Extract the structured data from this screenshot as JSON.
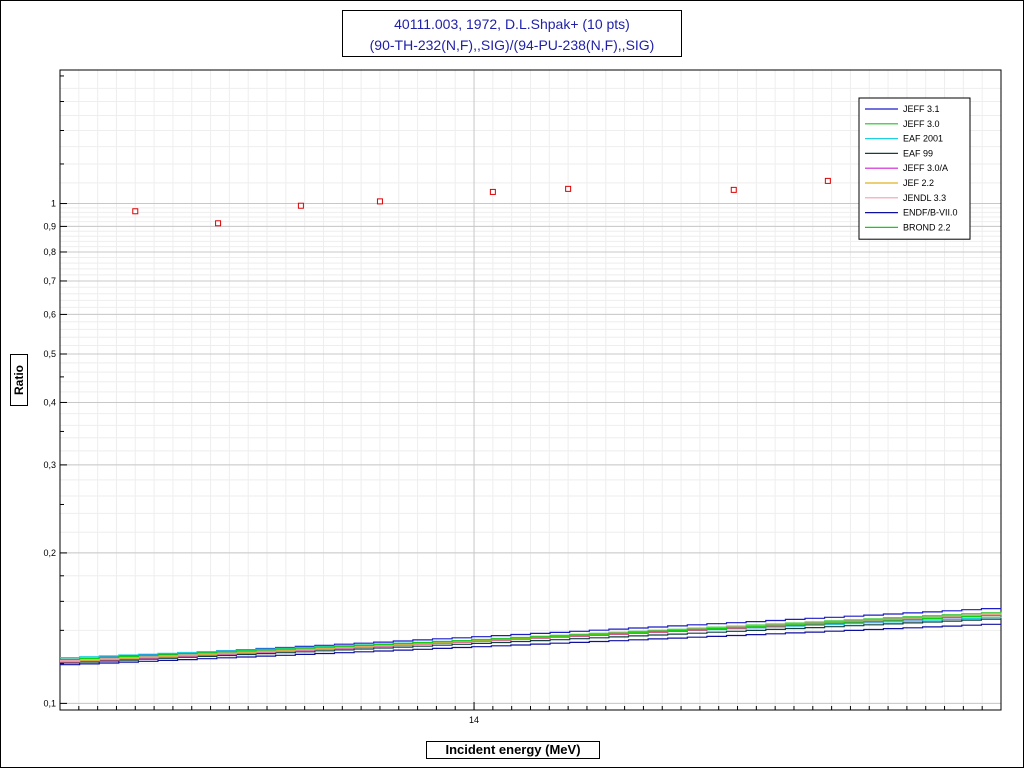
{
  "title": {
    "line1": "40111.003, 1972, D.L.Shpak+ (10 pts)",
    "line2": "(90-TH-232(N,F),,SIG)/(94-PU-238(N,F),,SIG)"
  },
  "chart_data": {
    "type": "scatter",
    "xlabel": "Incident energy (MeV)",
    "ylabel": "Ratio",
    "y_scale": "log",
    "xlim": [
      12.9,
      15.4
    ],
    "ylim": [
      0.097,
      1.85
    ],
    "x_ticks": [
      14
    ],
    "x_tick_labels": [
      "14"
    ],
    "y_ticks": [
      0.1,
      0.2,
      0.3,
      0.4,
      0.5,
      0.6,
      0.7,
      0.8,
      0.9,
      1
    ],
    "y_tick_labels": [
      "0,1",
      "0,2",
      "0,3",
      "0,4",
      "0,5",
      "0,6",
      "0,7",
      "0,8",
      "0,9",
      "1"
    ],
    "grid": true,
    "legend_position": "top-right",
    "experimental": {
      "color": "#dd0000",
      "points": [
        {
          "x": 13.1,
          "y": 0.965
        },
        {
          "x": 13.32,
          "y": 0.913
        },
        {
          "x": 13.54,
          "y": 0.99
        },
        {
          "x": 13.75,
          "y": 1.01
        },
        {
          "x": 14.05,
          "y": 1.055
        },
        {
          "x": 14.25,
          "y": 1.07
        },
        {
          "x": 14.69,
          "y": 1.065
        },
        {
          "x": 14.94,
          "y": 1.11
        }
      ]
    },
    "series": [
      {
        "name": "JEFF 3.1",
        "color": "#1c1cc8",
        "x": [
          12.9,
          15.4
        ],
        "y": [
          0.1225,
          0.1555
        ]
      },
      {
        "name": "JEFF 3.0",
        "color": "#20c020",
        "x": [
          12.9,
          15.4
        ],
        "y": [
          0.1215,
          0.1525
        ]
      },
      {
        "name": "EAF 2001",
        "color": "#20d0e0",
        "x": [
          12.9,
          15.4
        ],
        "y": [
          0.1235,
          0.149
        ]
      },
      {
        "name": "EAF 99",
        "color": "#104040",
        "x": [
          12.9,
          15.4
        ],
        "y": [
          0.1205,
          0.148
        ]
      },
      {
        "name": "JEFF 3.0/A",
        "color": "#d020d0",
        "x": [
          12.9,
          15.4
        ],
        "y": [
          0.121,
          0.1505
        ]
      },
      {
        "name": "JEF 2.2",
        "color": "#e0b020",
        "x": [
          12.9,
          15.4
        ],
        "y": [
          0.1212,
          0.151
        ]
      },
      {
        "name": "JENDL 3.3",
        "color": "#f0a0b0",
        "x": [
          12.9,
          15.4
        ],
        "y": [
          0.1218,
          0.1515
        ]
      },
      {
        "name": "ENDF/B-VII.0",
        "color": "#1010a0",
        "x": [
          12.9,
          15.4
        ],
        "y": [
          0.1195,
          0.1445
        ]
      },
      {
        "name": "BROND 2.2",
        "color": "#10d010",
        "x": [
          12.9,
          15.4
        ],
        "y": [
          0.1225,
          0.1505
        ]
      }
    ]
  }
}
